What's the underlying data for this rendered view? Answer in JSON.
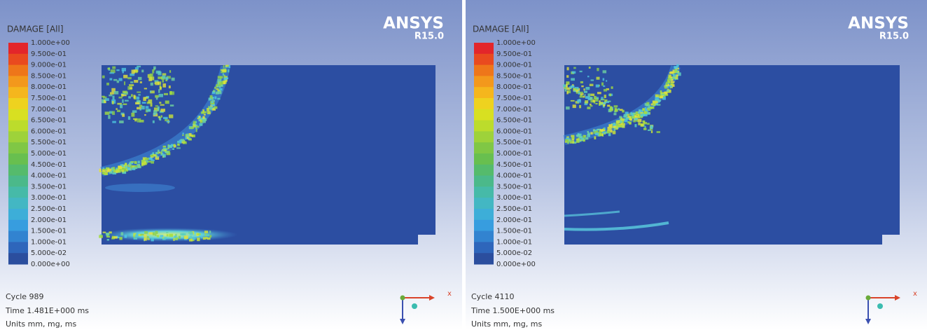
{
  "panels": [
    {
      "legend": {
        "title": "DAMAGE [All]",
        "labels": [
          "1.000e+00",
          "9.500e-01",
          "9.000e-01",
          "8.500e-01",
          "8.000e-01",
          "7.500e-01",
          "7.000e-01",
          "6.500e-01",
          "6.000e-01",
          "5.500e-01",
          "5.000e-01",
          "4.500e-01",
          "4.000e-01",
          "3.500e-01",
          "3.000e-01",
          "2.500e-01",
          "2.000e-01",
          "1.500e-01",
          "1.000e-01",
          "5.000e-02",
          "0.000e+00"
        ]
      },
      "logo": {
        "brand": "ANSYS",
        "version": "R15.0"
      },
      "info": {
        "cycle": "Cycle 989",
        "time": "Time 1.481E+000 ms",
        "units": "Units mm, mg, ms"
      },
      "axis": {
        "x": "x"
      }
    },
    {
      "legend": {
        "title": "DAMAGE [All]",
        "labels": [
          "1.000e+00",
          "9.500e-01",
          "9.000e-01",
          "8.500e-01",
          "8.000e-01",
          "7.500e-01",
          "7.000e-01",
          "6.500e-01",
          "6.000e-01",
          "5.500e-01",
          "5.000e-01",
          "4.500e-01",
          "4.000e-01",
          "3.500e-01",
          "3.000e-01",
          "2.500e-01",
          "2.000e-01",
          "1.500e-01",
          "1.000e-01",
          "5.000e-02",
          "0.000e+00"
        ]
      },
      "logo": {
        "brand": "ANSYS",
        "version": "R15.0"
      },
      "info": {
        "cycle": "Cycle 4110",
        "time": "Time 1.500E+000 ms",
        "units": "Units mm, mg, ms"
      },
      "axis": {
        "x": "x"
      }
    }
  ]
}
